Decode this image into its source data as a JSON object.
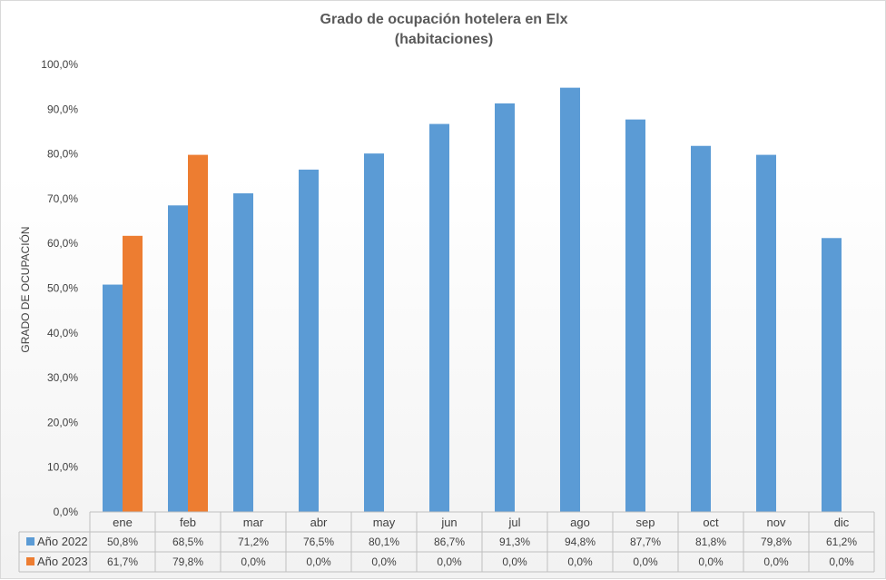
{
  "chart_data": {
    "type": "bar",
    "title": "Grado de ocupación hotelera en Elx",
    "subtitle": "(habitaciones)",
    "ylabel": "GRADO DE OCUPACIÓN",
    "ylim": [
      0,
      100
    ],
    "yticks": [
      "0,0%",
      "10,0%",
      "20,0%",
      "30,0%",
      "40,0%",
      "50,0%",
      "60,0%",
      "70,0%",
      "80,0%",
      "90,0%",
      "100,0%"
    ],
    "categories": [
      "ene",
      "feb",
      "mar",
      "abr",
      "may",
      "jun",
      "jul",
      "ago",
      "sep",
      "oct",
      "nov",
      "dic"
    ],
    "series": [
      {
        "name": "Año 2022",
        "color": "#5b9bd5",
        "values": [
          50.8,
          68.5,
          71.2,
          76.5,
          80.1,
          86.7,
          91.3,
          94.8,
          87.7,
          81.8,
          79.8,
          61.2
        ],
        "labels": [
          "50,8%",
          "68,5%",
          "71,2%",
          "76,5%",
          "80,1%",
          "86,7%",
          "91,3%",
          "94,8%",
          "87,7%",
          "81,8%",
          "79,8%",
          "61,2%"
        ]
      },
      {
        "name": "Año 2023",
        "color": "#ed7d31",
        "values": [
          61.7,
          79.8,
          0,
          0,
          0,
          0,
          0,
          0,
          0,
          0,
          0,
          0
        ],
        "labels": [
          "61,7%",
          "79,8%",
          "0,0%",
          "0,0%",
          "0,0%",
          "0,0%",
          "0,0%",
          "0,0%",
          "0,0%",
          "0,0%",
          "0,0%",
          "0,0%"
        ]
      }
    ],
    "data_table": true,
    "grid": false
  }
}
